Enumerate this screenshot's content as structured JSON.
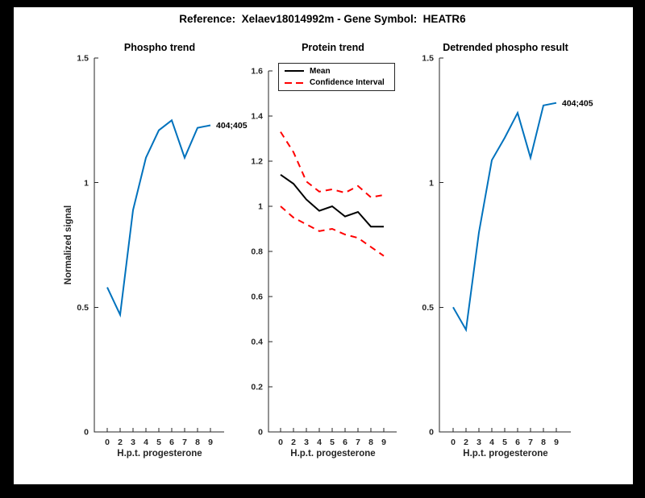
{
  "figure": {
    "title": "Reference:  Xelaev18014992m - Gene Symbol:  HEATR6",
    "frame_color": "#000000",
    "canvas_color": "#ffffff",
    "accent_blue": "#0072BD",
    "ci_red": "#FF0000"
  },
  "chart_data": [
    {
      "type": "line",
      "title": "Phospho trend",
      "xlabel": "H.p.t. progesterone",
      "ylabel": "Normalized signal",
      "categories": [
        "0",
        "2",
        "3",
        "4",
        "5",
        "6",
        "7",
        "8",
        "9"
      ],
      "ylim": [
        0,
        1.5
      ],
      "yticks": [
        "0",
        "0.5",
        "1",
        "1.5"
      ],
      "grid": "off",
      "series": [
        {
          "name": "phospho-trend",
          "color": "#0072BD",
          "dash": "solid",
          "values": [
            0.58,
            0.47,
            0.89,
            1.1,
            1.21,
            1.25,
            1.1,
            1.22,
            1.23
          ]
        }
      ],
      "end_label": "404;405"
    },
    {
      "type": "line",
      "title": "Protein trend",
      "xlabel": "H.p.t. progesterone",
      "ylabel": "",
      "categories": [
        "0",
        "2",
        "3",
        "4",
        "5",
        "6",
        "7",
        "8",
        "9"
      ],
      "ylim": [
        0,
        1.6
      ],
      "yticks": [
        "0",
        "0.2",
        "0.4",
        "0.6",
        "0.8",
        "1",
        "1.2",
        "1.4",
        "1.6"
      ],
      "grid": "off",
      "legend": {
        "position": "northeast",
        "entries": [
          "Mean",
          "Confidence Interval"
        ]
      },
      "series": [
        {
          "name": "mean",
          "color": "#000000",
          "dash": "solid",
          "values": [
            1.14,
            1.1,
            1.03,
            0.98,
            1.0,
            0.955,
            0.975,
            0.91,
            0.91
          ]
        },
        {
          "name": "ci-upper",
          "color": "#FF0000",
          "dash": "dashed",
          "values": [
            1.33,
            1.24,
            1.11,
            1.065,
            1.075,
            1.06,
            1.09,
            1.04,
            1.05
          ]
        },
        {
          "name": "ci-lower",
          "color": "#FF0000",
          "dash": "dashed",
          "values": [
            1.0,
            0.95,
            0.92,
            0.89,
            0.9,
            0.875,
            0.86,
            0.82,
            0.78
          ]
        }
      ]
    },
    {
      "type": "line",
      "title": "Detrended phospho result",
      "xlabel": "H.p.t. progesterone",
      "ylabel": "",
      "categories": [
        "0",
        "2",
        "3",
        "4",
        "5",
        "6",
        "7",
        "8",
        "9"
      ],
      "ylim": [
        0,
        1.5
      ],
      "yticks": [
        "0",
        "0.5",
        "1",
        "1.5"
      ],
      "grid": "off",
      "series": [
        {
          "name": "detrended-phospho",
          "color": "#0072BD",
          "dash": "solid",
          "values": [
            0.5,
            0.41,
            0.8,
            1.09,
            1.18,
            1.28,
            1.1,
            1.31,
            1.32
          ]
        }
      ],
      "end_label": "404;405"
    }
  ]
}
